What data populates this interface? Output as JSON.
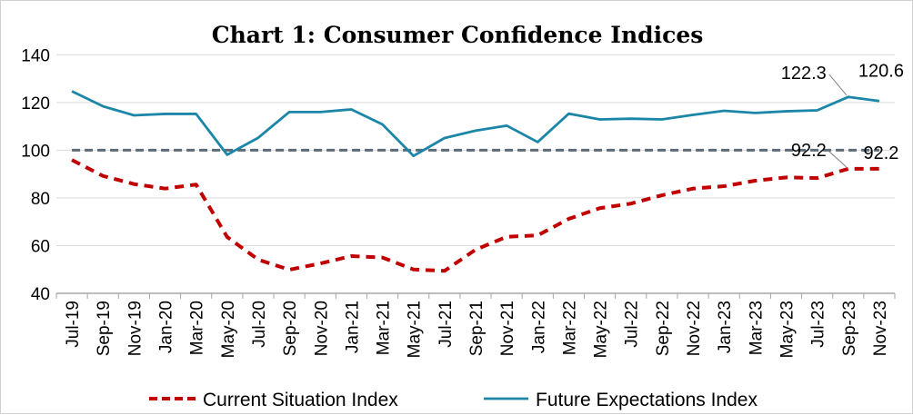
{
  "chart_data": {
    "type": "line",
    "title": "Chart 1: Consumer Confidence Indices",
    "xlabel": "",
    "ylabel": "",
    "ylim": [
      40,
      140
    ],
    "yticks": [
      40,
      60,
      80,
      100,
      120,
      140
    ],
    "grid": true,
    "legend_position": "bottom",
    "reference_line": {
      "value": 100,
      "color": "#5b6b78",
      "style": "dashed"
    },
    "categories": [
      "Jul-19",
      "Sep-19",
      "Nov-19",
      "Jan-20",
      "Mar-20",
      "May-20",
      "Jul-20",
      "Sep-20",
      "Nov-20",
      "Jan-21",
      "Mar-21",
      "May-21",
      "Jul-21",
      "Sep-21",
      "Nov-21",
      "Jan-22",
      "Mar-22",
      "May-22",
      "Jul-22",
      "Sep-22",
      "Nov-22",
      "Jan-23",
      "Mar-23",
      "May-23",
      "Jul-23",
      "Sep-23",
      "Nov-23"
    ],
    "series": [
      {
        "name": "Current Situation Index",
        "color": "#c00000",
        "style": "dashed",
        "values": [
          95.9,
          89.2,
          85.8,
          83.9,
          85.6,
          63.6,
          54.1,
          49.9,
          52.5,
          55.6,
          55.0,
          50.0,
          49.4,
          58.3,
          63.7,
          64.3,
          71.2,
          75.7,
          77.6,
          81.1,
          83.9,
          84.9,
          87.2,
          88.6,
          88.3,
          92.2,
          92.2
        ],
        "data_labels": [
          {
            "index": 25,
            "text": "92.2"
          },
          {
            "index": 26,
            "text": "92.2"
          }
        ]
      },
      {
        "name": "Future Expectations Index",
        "color": "#1b86a8",
        "style": "solid",
        "values": [
          124.7,
          118.4,
          114.6,
          115.2,
          115.2,
          98.1,
          105.2,
          116.0,
          116.0,
          117.1,
          110.8,
          97.6,
          105.1,
          108.2,
          110.3,
          103.4,
          115.3,
          112.9,
          113.2,
          112.9,
          114.8,
          116.5,
          115.6,
          116.3,
          116.7,
          122.3,
          120.6
        ],
        "data_labels": [
          {
            "index": 25,
            "text": "122.3"
          },
          {
            "index": 26,
            "text": "120.6"
          }
        ]
      }
    ]
  }
}
